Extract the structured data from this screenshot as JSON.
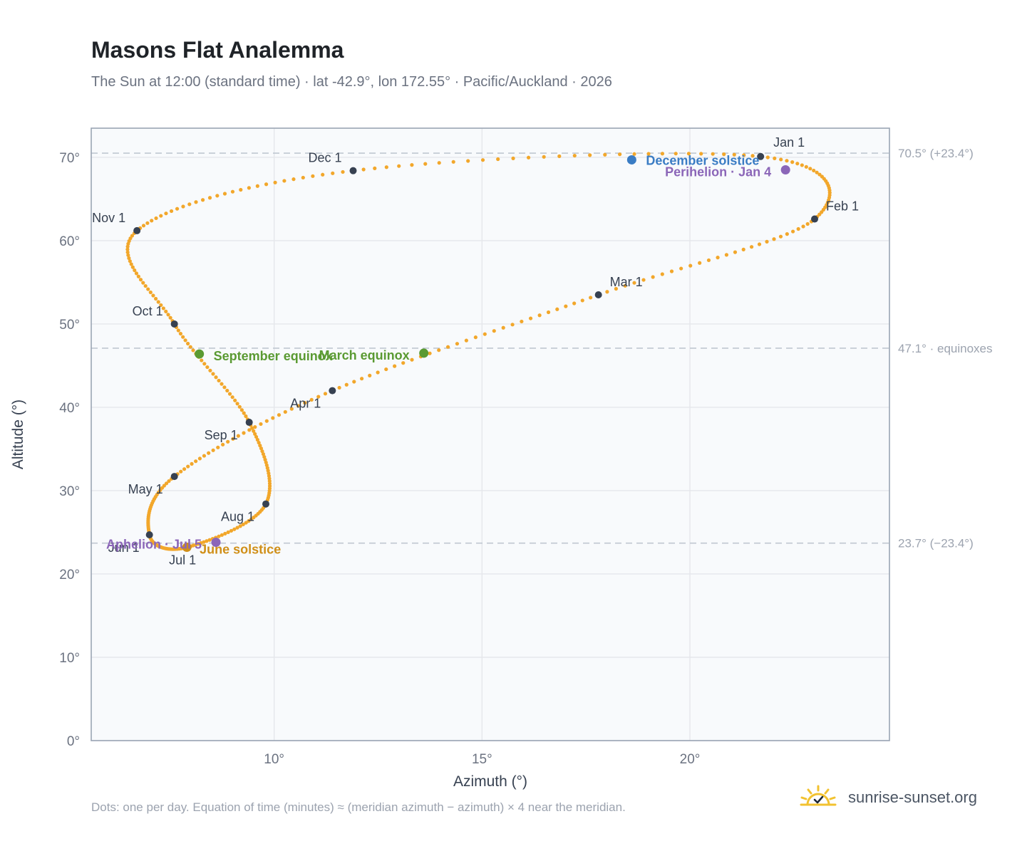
{
  "title": "Masons Flat Analemma",
  "subtitle": "The Sun at 12:00 (standard time) · lat -42.9°, lon 172.55° · Pacific/Auckland · 2026",
  "footnote": "Dots: one per day. Equation of time (minutes) ≈ (meridian azimuth − azimuth) × 4 near the meridian.",
  "brand": {
    "name": "sunrise-sunset.org",
    "icon": "sun-logo-icon"
  },
  "colors": {
    "path": "#f2a72b",
    "month_marker": "#374151",
    "solstice_june": "#d08f18",
    "solstice_december": "#3a7cc4",
    "equinox": "#5a9a32",
    "apsis": "#8b66b8",
    "plot_bg": "#f8fafc",
    "grid": "#e5e7eb",
    "reference": "#bfc7d1"
  },
  "chart_data": {
    "type": "scatter",
    "xlabel": "Azimuth (°)",
    "ylabel": "Altitude (°)",
    "xlim": [
      5.6,
      24.8
    ],
    "ylim": [
      0,
      73.5
    ],
    "xticks": [
      10,
      15,
      20
    ],
    "xtick_labels": [
      "10°",
      "15°",
      "20°"
    ],
    "yticks": [
      0,
      10,
      20,
      30,
      40,
      50,
      60,
      70
    ],
    "ytick_labels": [
      "0°",
      "10°",
      "20°",
      "30°",
      "40°",
      "50°",
      "60°",
      "70°"
    ],
    "grid": true,
    "reference_lines": [
      {
        "y": 70.5,
        "label": "70.5° (+23.4°)"
      },
      {
        "y": 47.1,
        "label": "47.1° · equinoxes"
      },
      {
        "y": 23.7,
        "label": "23.7° (−23.4°)"
      }
    ],
    "path_anchors": [
      {
        "doy": 1,
        "az": 21.7,
        "alt": 70.1
      },
      {
        "doy": 32,
        "az": 23.0,
        "alt": 62.6
      },
      {
        "doy": 60,
        "az": 17.8,
        "alt": 53.5
      },
      {
        "doy": 91,
        "az": 11.4,
        "alt": 42.0
      },
      {
        "doy": 121,
        "az": 7.6,
        "alt": 31.7
      },
      {
        "doy": 152,
        "az": 7.0,
        "alt": 24.7
      },
      {
        "doy": 182,
        "az": 7.9,
        "alt": 23.2
      },
      {
        "doy": 213,
        "az": 9.8,
        "alt": 28.4
      },
      {
        "doy": 244,
        "az": 9.4,
        "alt": 38.2
      },
      {
        "doy": 274,
        "az": 7.6,
        "alt": 50.0
      },
      {
        "doy": 305,
        "az": 6.7,
        "alt": 61.2
      },
      {
        "doy": 335,
        "az": 11.9,
        "alt": 68.4
      },
      {
        "doy": 366,
        "az": 21.7,
        "alt": 70.1
      }
    ],
    "month_markers": [
      {
        "label": "Jan 1",
        "az": 21.7,
        "alt": 70.1,
        "anchor": "start",
        "dx": 18,
        "dy": -14
      },
      {
        "label": "Feb 1",
        "az": 23.0,
        "alt": 62.6,
        "anchor": "start",
        "dx": 16,
        "dy": -12
      },
      {
        "label": "Mar 1",
        "az": 17.8,
        "alt": 53.5,
        "anchor": "start",
        "dx": 16,
        "dy": -12
      },
      {
        "label": "Apr 1",
        "az": 11.4,
        "alt": 42.0,
        "anchor": "end",
        "dx": -16,
        "dy": 24
      },
      {
        "label": "May 1",
        "az": 7.6,
        "alt": 31.7,
        "anchor": "end",
        "dx": -16,
        "dy": 24
      },
      {
        "label": "Jun 1",
        "az": 7.0,
        "alt": 24.7,
        "anchor": "end",
        "dx": -14,
        "dy": 24
      },
      {
        "label": "Jul 1",
        "az": 7.9,
        "alt": 23.2,
        "anchor": "middle",
        "dx": -6,
        "dy": 24
      },
      {
        "label": "Aug 1",
        "az": 9.8,
        "alt": 28.4,
        "anchor": "end",
        "dx": -16,
        "dy": 24
      },
      {
        "label": "Sep 1",
        "az": 9.4,
        "alt": 38.2,
        "anchor": "end",
        "dx": -16,
        "dy": 24
      },
      {
        "label": "Oct 1",
        "az": 7.6,
        "alt": 50.0,
        "anchor": "end",
        "dx": -16,
        "dy": -12
      },
      {
        "label": "Nov 1",
        "az": 6.7,
        "alt": 61.2,
        "anchor": "end",
        "dx": -16,
        "dy": -12
      },
      {
        "label": "Dec 1",
        "az": 11.9,
        "alt": 68.4,
        "anchor": "end",
        "dx": -16,
        "dy": -12
      }
    ],
    "events": [
      {
        "label": "December solstice",
        "az": 18.6,
        "alt": 69.7,
        "kind": "solstice_december",
        "anchor": "start",
        "dx": 20,
        "dy": 7
      },
      {
        "label": "Perihelion · Jan 4",
        "az": 22.3,
        "alt": 68.5,
        "kind": "apsis",
        "anchor": "end",
        "dx": -20,
        "dy": 9
      },
      {
        "label": "March equinox",
        "az": 13.6,
        "alt": 46.5,
        "kind": "equinox",
        "anchor": "end",
        "dx": -20,
        "dy": 9
      },
      {
        "label": "September equinox",
        "az": 8.2,
        "alt": 46.4,
        "kind": "equinox",
        "anchor": "start",
        "dx": 20,
        "dy": 9
      },
      {
        "label": "June solstice",
        "az": 7.9,
        "alt": 23.2,
        "kind": "solstice_june",
        "anchor": "start",
        "dx": 18,
        "dy": 9
      },
      {
        "label": "Aphelion · Jul 5",
        "az": 8.6,
        "alt": 23.8,
        "kind": "apsis",
        "anchor": "end",
        "dx": -20,
        "dy": 9
      }
    ]
  }
}
